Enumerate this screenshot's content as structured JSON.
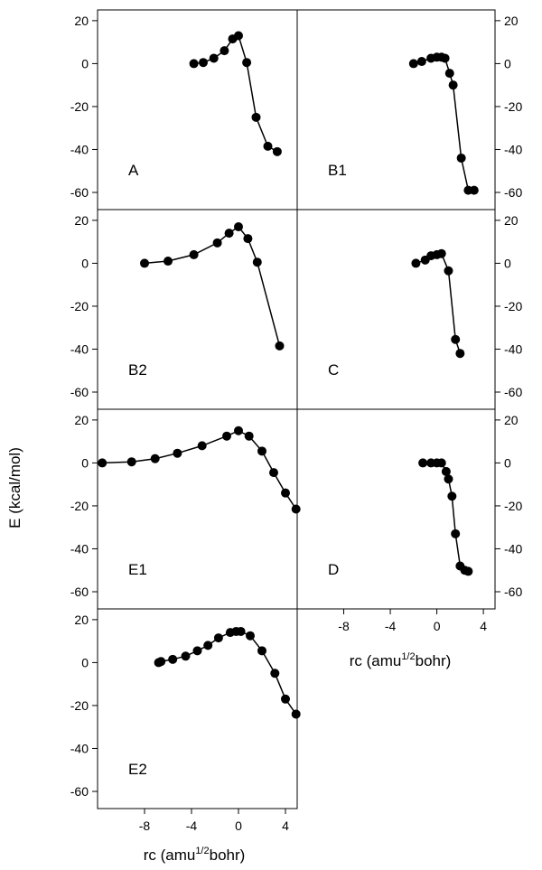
{
  "figure": {
    "ylabel": "E (kcal/mol)",
    "xlabel_main": "rc (amu",
    "xlabel_sup": "1/2",
    "xlabel_tail": "bohr)"
  },
  "chart_data": [
    {
      "panel": "A",
      "type": "line",
      "xlim": [
        -12,
        5
      ],
      "ylim": [
        -68,
        25
      ],
      "yticks": [
        20,
        0,
        -20,
        -40,
        -60
      ],
      "xticks": [],
      "x": [
        -3.8,
        -3.0,
        -2.1,
        -1.2,
        -0.5,
        0.0,
        0.7,
        1.5,
        2.5,
        3.3
      ],
      "y": [
        0,
        0.5,
        2.5,
        6,
        11.5,
        13,
        0.5,
        -25,
        -38.5,
        -41
      ]
    },
    {
      "panel": "B1",
      "type": "line",
      "xlim": [
        -12,
        5
      ],
      "ylim": [
        -68,
        25
      ],
      "yticks": [
        20,
        0,
        -20,
        -40,
        -60
      ],
      "xticks": [],
      "x": [
        -2.0,
        -1.3,
        -0.5,
        0.0,
        0.4,
        0.7,
        1.1,
        1.4,
        2.1,
        2.7,
        3.2
      ],
      "y": [
        0,
        1,
        2.5,
        3,
        3,
        2.5,
        -4.5,
        -10,
        -44,
        -59,
        -59
      ]
    },
    {
      "panel": "B2",
      "type": "line",
      "xlim": [
        -12,
        5
      ],
      "ylim": [
        -68,
        25
      ],
      "yticks": [
        20,
        0,
        -20,
        -40,
        -60
      ],
      "xticks": [],
      "x": [
        -8.0,
        -6.0,
        -3.8,
        -1.8,
        -0.8,
        0.0,
        0.8,
        1.6,
        3.5
      ],
      "y": [
        0,
        1,
        4,
        9.5,
        14,
        17,
        11.5,
        0.5,
        -38.5
      ]
    },
    {
      "panel": "C",
      "type": "line",
      "xlim": [
        -12,
        5
      ],
      "ylim": [
        -68,
        25
      ],
      "yticks": [
        20,
        0,
        -20,
        -40,
        -60
      ],
      "xticks": [],
      "x": [
        -1.8,
        -1.0,
        -0.5,
        0.0,
        0.4,
        1.0,
        1.6,
        2.0
      ],
      "y": [
        0,
        1.5,
        3.5,
        4,
        4.5,
        -3.5,
        -35.5,
        -42
      ]
    },
    {
      "panel": "E1",
      "type": "line",
      "xlim": [
        -12,
        5
      ],
      "ylim": [
        -68,
        25
      ],
      "yticks": [
        20,
        0,
        -20,
        -40,
        -60
      ],
      "xticks": [],
      "x": [
        -11.6,
        -9.1,
        -7.1,
        -5.2,
        -3.1,
        -1.0,
        0.0,
        0.9,
        2.0,
        3.0,
        4.0,
        4.9
      ],
      "y": [
        0,
        0.5,
        2,
        4.5,
        8,
        12.5,
        15,
        12.5,
        5.5,
        -4.5,
        -14,
        -21.5
      ]
    },
    {
      "panel": "D",
      "type": "line",
      "xlim": [
        -12,
        5
      ],
      "ylim": [
        -68,
        25
      ],
      "yticks": [
        20,
        0,
        -20,
        -40,
        -60
      ],
      "xticks": [
        -8,
        -4,
        0,
        4
      ],
      "x": [
        -1.2,
        -0.5,
        0.0,
        0.4,
        0.8,
        1.0,
        1.3,
        1.6,
        2.0,
        2.4,
        2.7
      ],
      "y": [
        0,
        0,
        0,
        0,
        -4,
        -7.5,
        -15.5,
        -33,
        -48,
        -50,
        -50.5
      ]
    },
    {
      "panel": "E2",
      "type": "line",
      "xlim": [
        -12,
        5
      ],
      "ylim": [
        -68,
        25
      ],
      "yticks": [
        20,
        0,
        -20,
        -40,
        -60
      ],
      "xticks": [
        -8,
        -4,
        0,
        4
      ],
      "x": [
        -6.8,
        -6.6,
        -5.6,
        -4.5,
        -3.5,
        -2.6,
        -1.7,
        -0.7,
        -0.2,
        0.2,
        1.0,
        2.0,
        3.1,
        4.0,
        4.9
      ],
      "y": [
        0,
        0.5,
        1.5,
        3,
        5.5,
        8,
        11.5,
        14,
        14.5,
        14.5,
        12.5,
        5.5,
        -5,
        -17,
        -24
      ]
    }
  ]
}
